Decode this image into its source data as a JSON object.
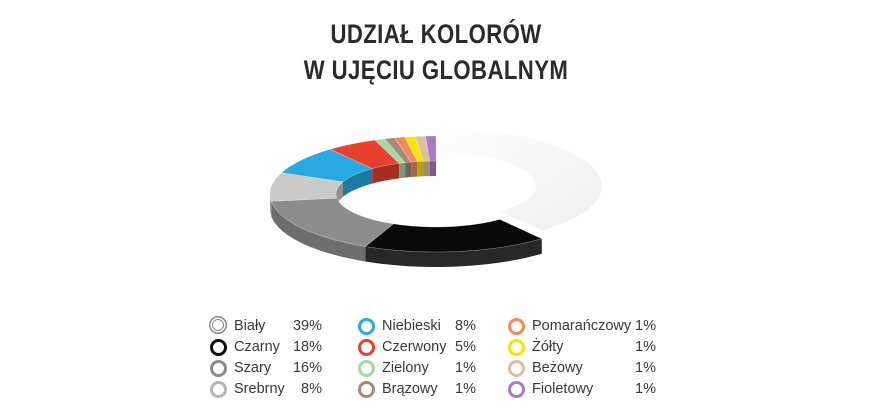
{
  "chart_data": {
    "type": "pie",
    "style": "3d-donut",
    "title_lines": [
      "UDZIAŁ KOLORÓW",
      "W UJĘCIU GLOBALNYM"
    ],
    "slices": [
      {
        "name": "Biały",
        "value": 39,
        "label": "39%",
        "color": "#f2f2f2",
        "swatch": "double-ring"
      },
      {
        "name": "Czarny",
        "value": 18,
        "label": "18%",
        "color": "#0a0a0a"
      },
      {
        "name": "Szary",
        "value": 16,
        "label": "16%",
        "color": "#8c8c8c"
      },
      {
        "name": "Srebrny",
        "value": 8,
        "label": "8%",
        "color": "#c9c9c9"
      },
      {
        "name": "Niebieski",
        "value": 8,
        "label": "8%",
        "color": "#29a9df"
      },
      {
        "name": "Czerwony",
        "value": 5,
        "label": "5%",
        "color": "#e8412f"
      },
      {
        "name": "Zielony",
        "value": 1,
        "label": "1%",
        "color": "#a3d9a5"
      },
      {
        "name": "Brązowy",
        "value": 1,
        "label": "1%",
        "color": "#a68a7a"
      },
      {
        "name": "Pomarańczowy",
        "value": 1,
        "label": "1%",
        "color": "#f08a60"
      },
      {
        "name": "Żółty",
        "value": 1,
        "label": "1%",
        "color": "#f5e600"
      },
      {
        "name": "Beżowy",
        "value": 1,
        "label": "1%",
        "color": "#d8c0a4"
      },
      {
        "name": "Fioletowy",
        "value": 1,
        "label": "1%",
        "color": "#a97bc1"
      }
    ],
    "legend_placement": "bottom",
    "exploded_slice": "Biały"
  }
}
